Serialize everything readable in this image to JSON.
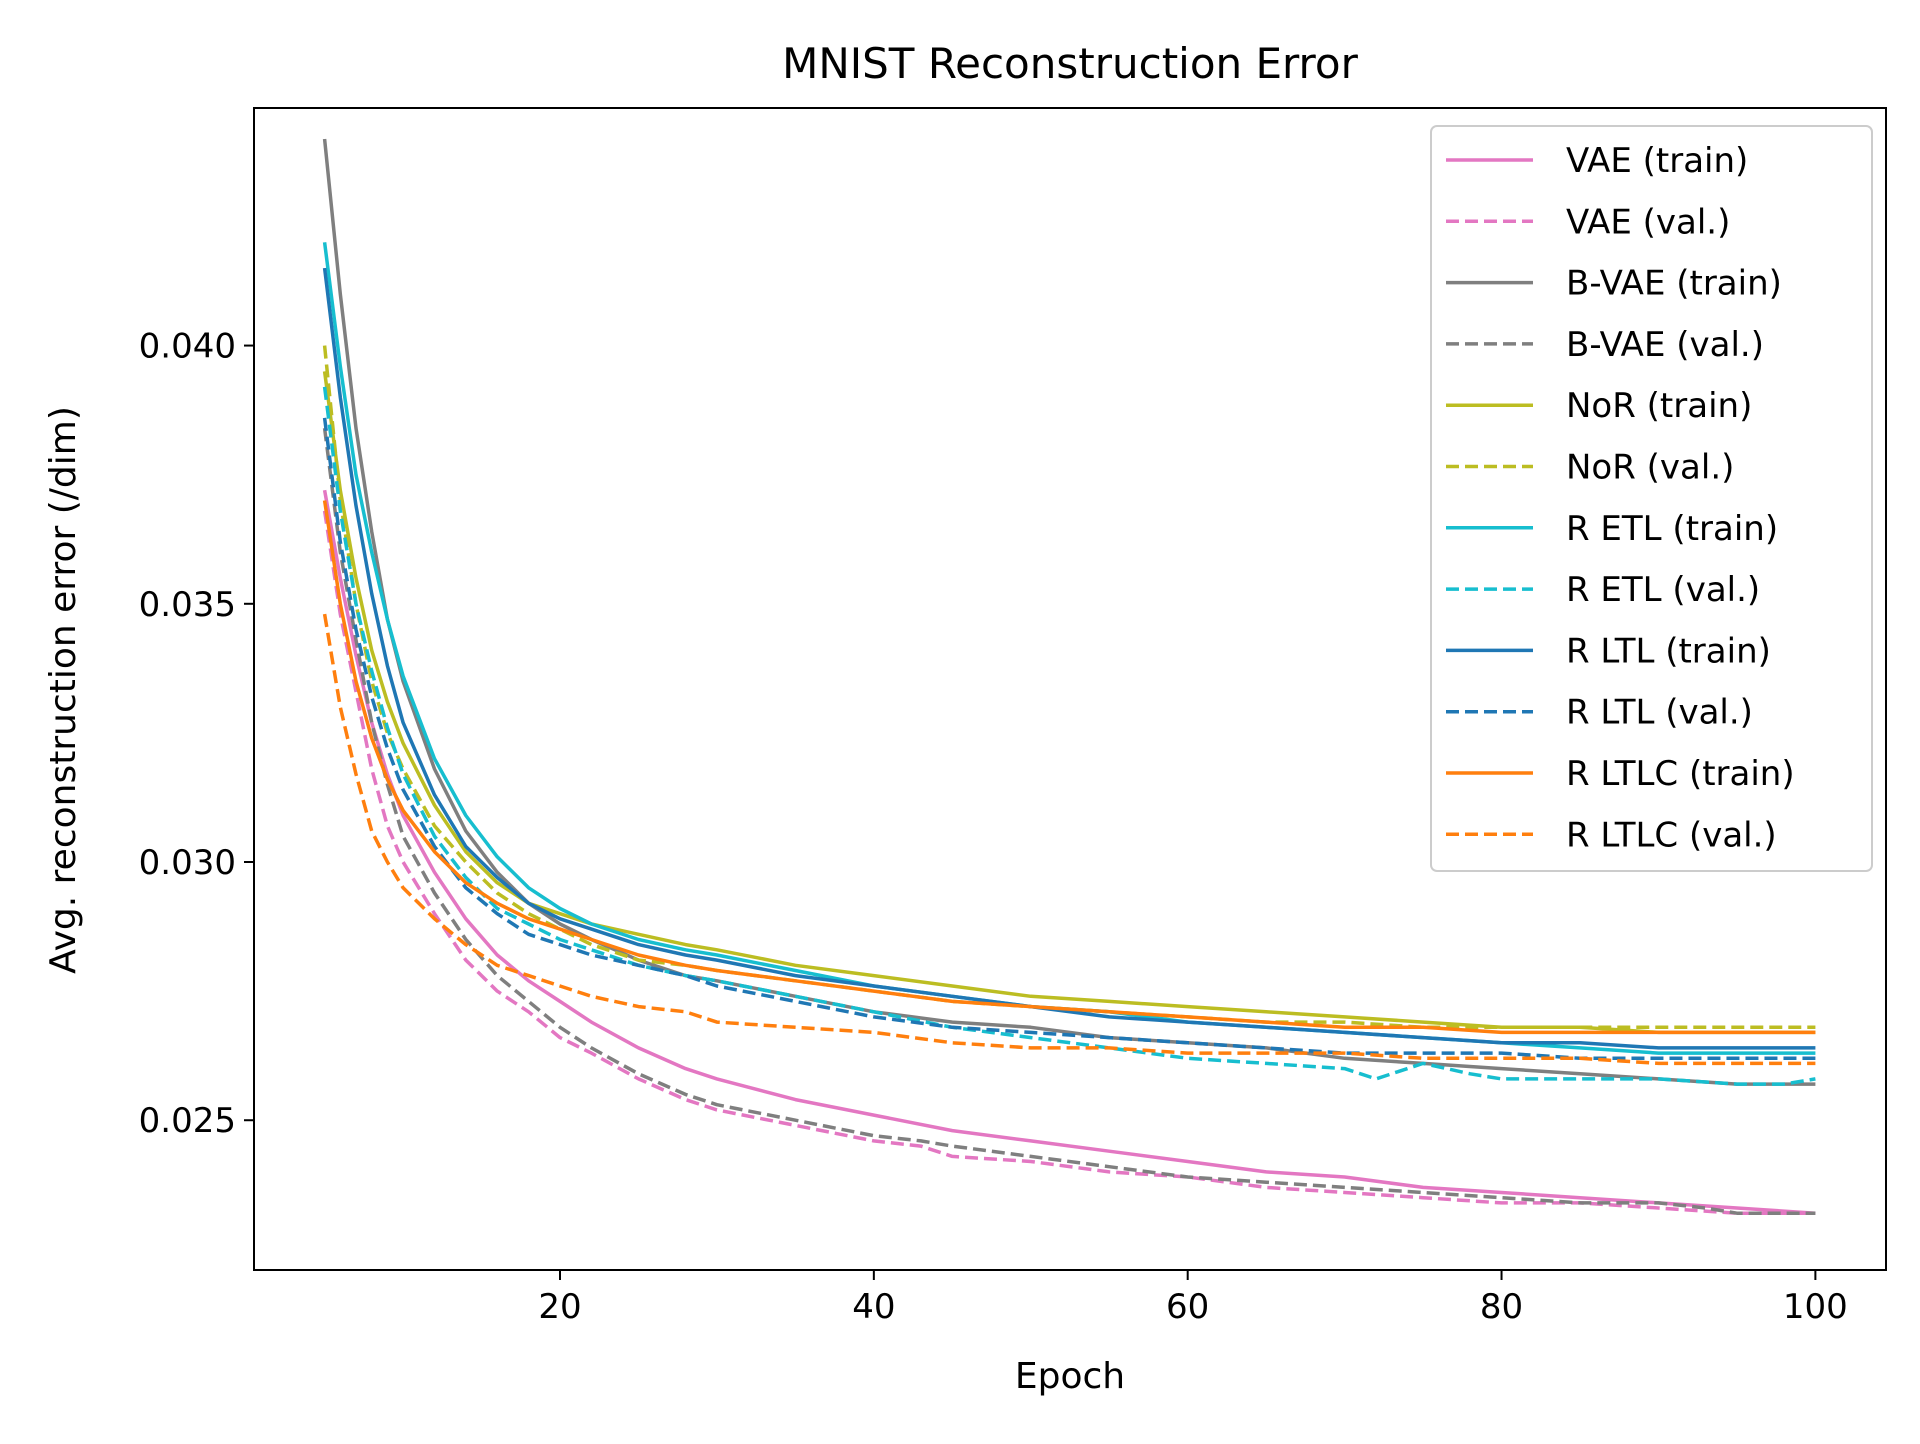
{
  "chart_data": {
    "type": "line",
    "title": "MNIST Reconstruction Error",
    "xlabel": "Epoch",
    "ylabel": "Avg. reconstruction error (/dim)",
    "xlim": [
      0.5,
      104.5
    ],
    "ylim": [
      0.0221,
      0.0446
    ],
    "x_ticks": [
      20,
      40,
      60,
      80,
      100
    ],
    "x_tick_labels": [
      "20",
      "40",
      "60",
      "80",
      "100"
    ],
    "y_ticks": [
      0.025,
      0.03,
      0.035,
      0.04
    ],
    "y_tick_labels": [
      "0.025",
      "0.030",
      "0.035",
      "0.040"
    ],
    "grid": false,
    "legend_position": "top-right",
    "series": [
      {
        "name": "VAE (train)",
        "color": "#e377c2",
        "style": "solid",
        "x": [
          5,
          6,
          7,
          8,
          9,
          10,
          12,
          14,
          16,
          18,
          20,
          22,
          25,
          28,
          30,
          35,
          40,
          45,
          50,
          55,
          60,
          65,
          70,
          75,
          80,
          85,
          90,
          95,
          100
        ],
        "y": [
          0.0372,
          0.0355,
          0.034,
          0.0327,
          0.0317,
          0.0309,
          0.0298,
          0.0289,
          0.0282,
          0.0277,
          0.0273,
          0.0269,
          0.0264,
          0.026,
          0.0258,
          0.0254,
          0.0251,
          0.0248,
          0.0246,
          0.0244,
          0.0242,
          0.024,
          0.0239,
          0.0237,
          0.0236,
          0.0235,
          0.0234,
          0.0233,
          0.0232
        ]
      },
      {
        "name": "VAE (val.)",
        "color": "#e377c2",
        "style": "dashed",
        "x": [
          5,
          6,
          7,
          8,
          9,
          10,
          12,
          14,
          16,
          18,
          20,
          22,
          25,
          28,
          30,
          35,
          40,
          43,
          45,
          50,
          55,
          60,
          65,
          70,
          75,
          80,
          85,
          90,
          95,
          100
        ],
        "y": [
          0.0368,
          0.0348,
          0.0333,
          0.0318,
          0.0307,
          0.03,
          0.029,
          0.0281,
          0.0275,
          0.0271,
          0.0266,
          0.0263,
          0.0258,
          0.0254,
          0.0252,
          0.0249,
          0.0246,
          0.0245,
          0.0243,
          0.0242,
          0.024,
          0.0239,
          0.0237,
          0.0236,
          0.0235,
          0.0234,
          0.0234,
          0.0233,
          0.0232,
          0.0232
        ]
      },
      {
        "name": "B-VAE (train)",
        "color": "#7f7f7f",
        "style": "solid",
        "x": [
          5,
          6,
          7,
          8,
          9,
          10,
          12,
          14,
          16,
          18,
          20,
          22,
          25,
          28,
          30,
          35,
          40,
          45,
          50,
          55,
          60,
          65,
          70,
          75,
          80,
          85,
          90,
          95,
          100
        ],
        "y": [
          0.044,
          0.041,
          0.0384,
          0.0364,
          0.0347,
          0.0335,
          0.0318,
          0.0306,
          0.0298,
          0.0292,
          0.0288,
          0.0285,
          0.0281,
          0.0278,
          0.0277,
          0.0274,
          0.0271,
          0.0269,
          0.0268,
          0.0266,
          0.0265,
          0.0264,
          0.0262,
          0.0261,
          0.026,
          0.0259,
          0.0258,
          0.0257,
          0.0257
        ]
      },
      {
        "name": "B-VAE (val.)",
        "color": "#7f7f7f",
        "style": "dashed",
        "x": [
          5,
          6,
          7,
          8,
          9,
          10,
          12,
          14,
          16,
          18,
          20,
          22,
          25,
          28,
          30,
          35,
          40,
          43,
          45,
          50,
          55,
          60,
          65,
          70,
          75,
          80,
          85,
          90,
          93,
          95,
          100
        ],
        "y": [
          0.0384,
          0.036,
          0.0343,
          0.0327,
          0.0315,
          0.0305,
          0.0294,
          0.0285,
          0.0278,
          0.0273,
          0.0268,
          0.0264,
          0.0259,
          0.0255,
          0.0253,
          0.025,
          0.0247,
          0.0246,
          0.0245,
          0.0243,
          0.0241,
          0.0239,
          0.0238,
          0.0237,
          0.0236,
          0.0235,
          0.0234,
          0.0234,
          0.0233,
          0.0232,
          0.0232
        ]
      },
      {
        "name": "NoR (train)",
        "color": "#bcbd22",
        "style": "solid",
        "x": [
          5,
          6,
          7,
          8,
          9,
          10,
          12,
          14,
          16,
          18,
          20,
          22,
          25,
          28,
          30,
          35,
          40,
          45,
          50,
          55,
          60,
          65,
          70,
          75,
          80,
          85,
          90,
          95,
          100
        ],
        "y": [
          0.0395,
          0.0372,
          0.0355,
          0.0341,
          0.0331,
          0.0323,
          0.0311,
          0.0302,
          0.0296,
          0.0292,
          0.029,
          0.0288,
          0.0286,
          0.0284,
          0.0283,
          0.028,
          0.0278,
          0.0276,
          0.0274,
          0.0273,
          0.0272,
          0.0271,
          0.027,
          0.0269,
          0.0268,
          0.0268,
          0.0267,
          0.0267,
          0.0267
        ]
      },
      {
        "name": "NoR (val.)",
        "color": "#bcbd22",
        "style": "dashed",
        "x": [
          5,
          6,
          7,
          8,
          9,
          10,
          12,
          14,
          16,
          18,
          20,
          22,
          25,
          28,
          30,
          35,
          40,
          45,
          50,
          55,
          60,
          65,
          70,
          75,
          80,
          85,
          90,
          95,
          100
        ],
        "y": [
          0.04,
          0.037,
          0.035,
          0.0335,
          0.0325,
          0.0318,
          0.0307,
          0.03,
          0.0294,
          0.029,
          0.0287,
          0.0284,
          0.0281,
          0.028,
          0.0279,
          0.0277,
          0.0275,
          0.0273,
          0.0272,
          0.0271,
          0.027,
          0.0269,
          0.0269,
          0.0268,
          0.0268,
          0.0268,
          0.0268,
          0.0268,
          0.0268
        ]
      },
      {
        "name": "R ETL (train)",
        "color": "#17becf",
        "style": "solid",
        "x": [
          5,
          6,
          7,
          8,
          9,
          10,
          12,
          14,
          16,
          18,
          20,
          22,
          25,
          28,
          30,
          35,
          40,
          45,
          50,
          55,
          60,
          65,
          70,
          75,
          80,
          85,
          90,
          95,
          100
        ],
        "y": [
          0.042,
          0.0396,
          0.0375,
          0.036,
          0.0347,
          0.0336,
          0.032,
          0.0309,
          0.0301,
          0.0295,
          0.0291,
          0.0288,
          0.0285,
          0.0283,
          0.0282,
          0.0279,
          0.0276,
          0.0274,
          0.0272,
          0.0271,
          0.0269,
          0.0268,
          0.0267,
          0.0266,
          0.0265,
          0.0264,
          0.0263,
          0.0263,
          0.0263
        ]
      },
      {
        "name": "R ETL (val.)",
        "color": "#17becf",
        "style": "dashed",
        "x": [
          5,
          6,
          7,
          8,
          9,
          10,
          12,
          14,
          16,
          18,
          20,
          22,
          25,
          28,
          30,
          35,
          40,
          45,
          50,
          55,
          60,
          65,
          70,
          72,
          75,
          78,
          80,
          82,
          85,
          88,
          90,
          95,
          98,
          100
        ],
        "y": [
          0.0392,
          0.0368,
          0.035,
          0.0337,
          0.0326,
          0.0317,
          0.0305,
          0.0297,
          0.0291,
          0.0288,
          0.0285,
          0.0283,
          0.028,
          0.0278,
          0.0277,
          0.0274,
          0.0271,
          0.0268,
          0.0266,
          0.0264,
          0.0262,
          0.0261,
          0.026,
          0.0258,
          0.0261,
          0.0259,
          0.0258,
          0.0258,
          0.0258,
          0.0258,
          0.0258,
          0.0257,
          0.0257,
          0.0258
        ]
      },
      {
        "name": "R LTL (train)",
        "color": "#1f77b4",
        "style": "solid",
        "x": [
          5,
          6,
          7,
          8,
          9,
          10,
          12,
          14,
          16,
          18,
          20,
          22,
          25,
          28,
          30,
          35,
          40,
          45,
          50,
          55,
          60,
          65,
          70,
          75,
          80,
          85,
          90,
          95,
          100
        ],
        "y": [
          0.0415,
          0.039,
          0.0369,
          0.0352,
          0.0338,
          0.0327,
          0.0313,
          0.0303,
          0.0297,
          0.0292,
          0.0289,
          0.0287,
          0.0284,
          0.0282,
          0.0281,
          0.0278,
          0.0276,
          0.0274,
          0.0272,
          0.027,
          0.0269,
          0.0268,
          0.0267,
          0.0266,
          0.0265,
          0.0265,
          0.0264,
          0.0264,
          0.0264
        ]
      },
      {
        "name": "R LTL (val.)",
        "color": "#1f77b4",
        "style": "dashed",
        "x": [
          5,
          6,
          7,
          8,
          9,
          10,
          12,
          14,
          16,
          18,
          20,
          22,
          25,
          28,
          30,
          35,
          40,
          45,
          50,
          55,
          60,
          65,
          70,
          75,
          80,
          85,
          90,
          95,
          100
        ],
        "y": [
          0.0386,
          0.0362,
          0.0345,
          0.0332,
          0.0322,
          0.0314,
          0.0303,
          0.0295,
          0.029,
          0.0286,
          0.0284,
          0.0282,
          0.028,
          0.0278,
          0.0276,
          0.0273,
          0.027,
          0.0268,
          0.0267,
          0.0266,
          0.0265,
          0.0264,
          0.0263,
          0.0263,
          0.0263,
          0.0262,
          0.0262,
          0.0262,
          0.0262
        ]
      },
      {
        "name": "R LTLC (train)",
        "color": "#ff7f0e",
        "style": "solid",
        "x": [
          5,
          6,
          7,
          8,
          9,
          10,
          12,
          14,
          16,
          18,
          20,
          22,
          25,
          28,
          30,
          35,
          40,
          45,
          50,
          55,
          60,
          65,
          70,
          75,
          80,
          85,
          90,
          95,
          100
        ],
        "y": [
          0.037,
          0.035,
          0.0335,
          0.0324,
          0.0316,
          0.031,
          0.0302,
          0.0296,
          0.0292,
          0.0289,
          0.0287,
          0.0285,
          0.0282,
          0.028,
          0.0279,
          0.0277,
          0.0275,
          0.0273,
          0.0272,
          0.0271,
          0.027,
          0.0269,
          0.0268,
          0.0268,
          0.0267,
          0.0267,
          0.0267,
          0.0267,
          0.0267
        ]
      },
      {
        "name": "R LTLC (val.)",
        "color": "#ff7f0e",
        "style": "dashed",
        "x": [
          5,
          6,
          7,
          8,
          9,
          10,
          12,
          14,
          16,
          18,
          20,
          22,
          25,
          28,
          30,
          35,
          40,
          45,
          50,
          55,
          60,
          65,
          70,
          75,
          80,
          85,
          90,
          95,
          100
        ],
        "y": [
          0.0348,
          0.033,
          0.0317,
          0.0306,
          0.03,
          0.0295,
          0.0289,
          0.0284,
          0.028,
          0.0278,
          0.0276,
          0.0274,
          0.0272,
          0.0271,
          0.0269,
          0.0268,
          0.0267,
          0.0265,
          0.0264,
          0.0264,
          0.0263,
          0.0263,
          0.0263,
          0.0262,
          0.0262,
          0.0262,
          0.0261,
          0.0261,
          0.0261
        ]
      }
    ]
  }
}
